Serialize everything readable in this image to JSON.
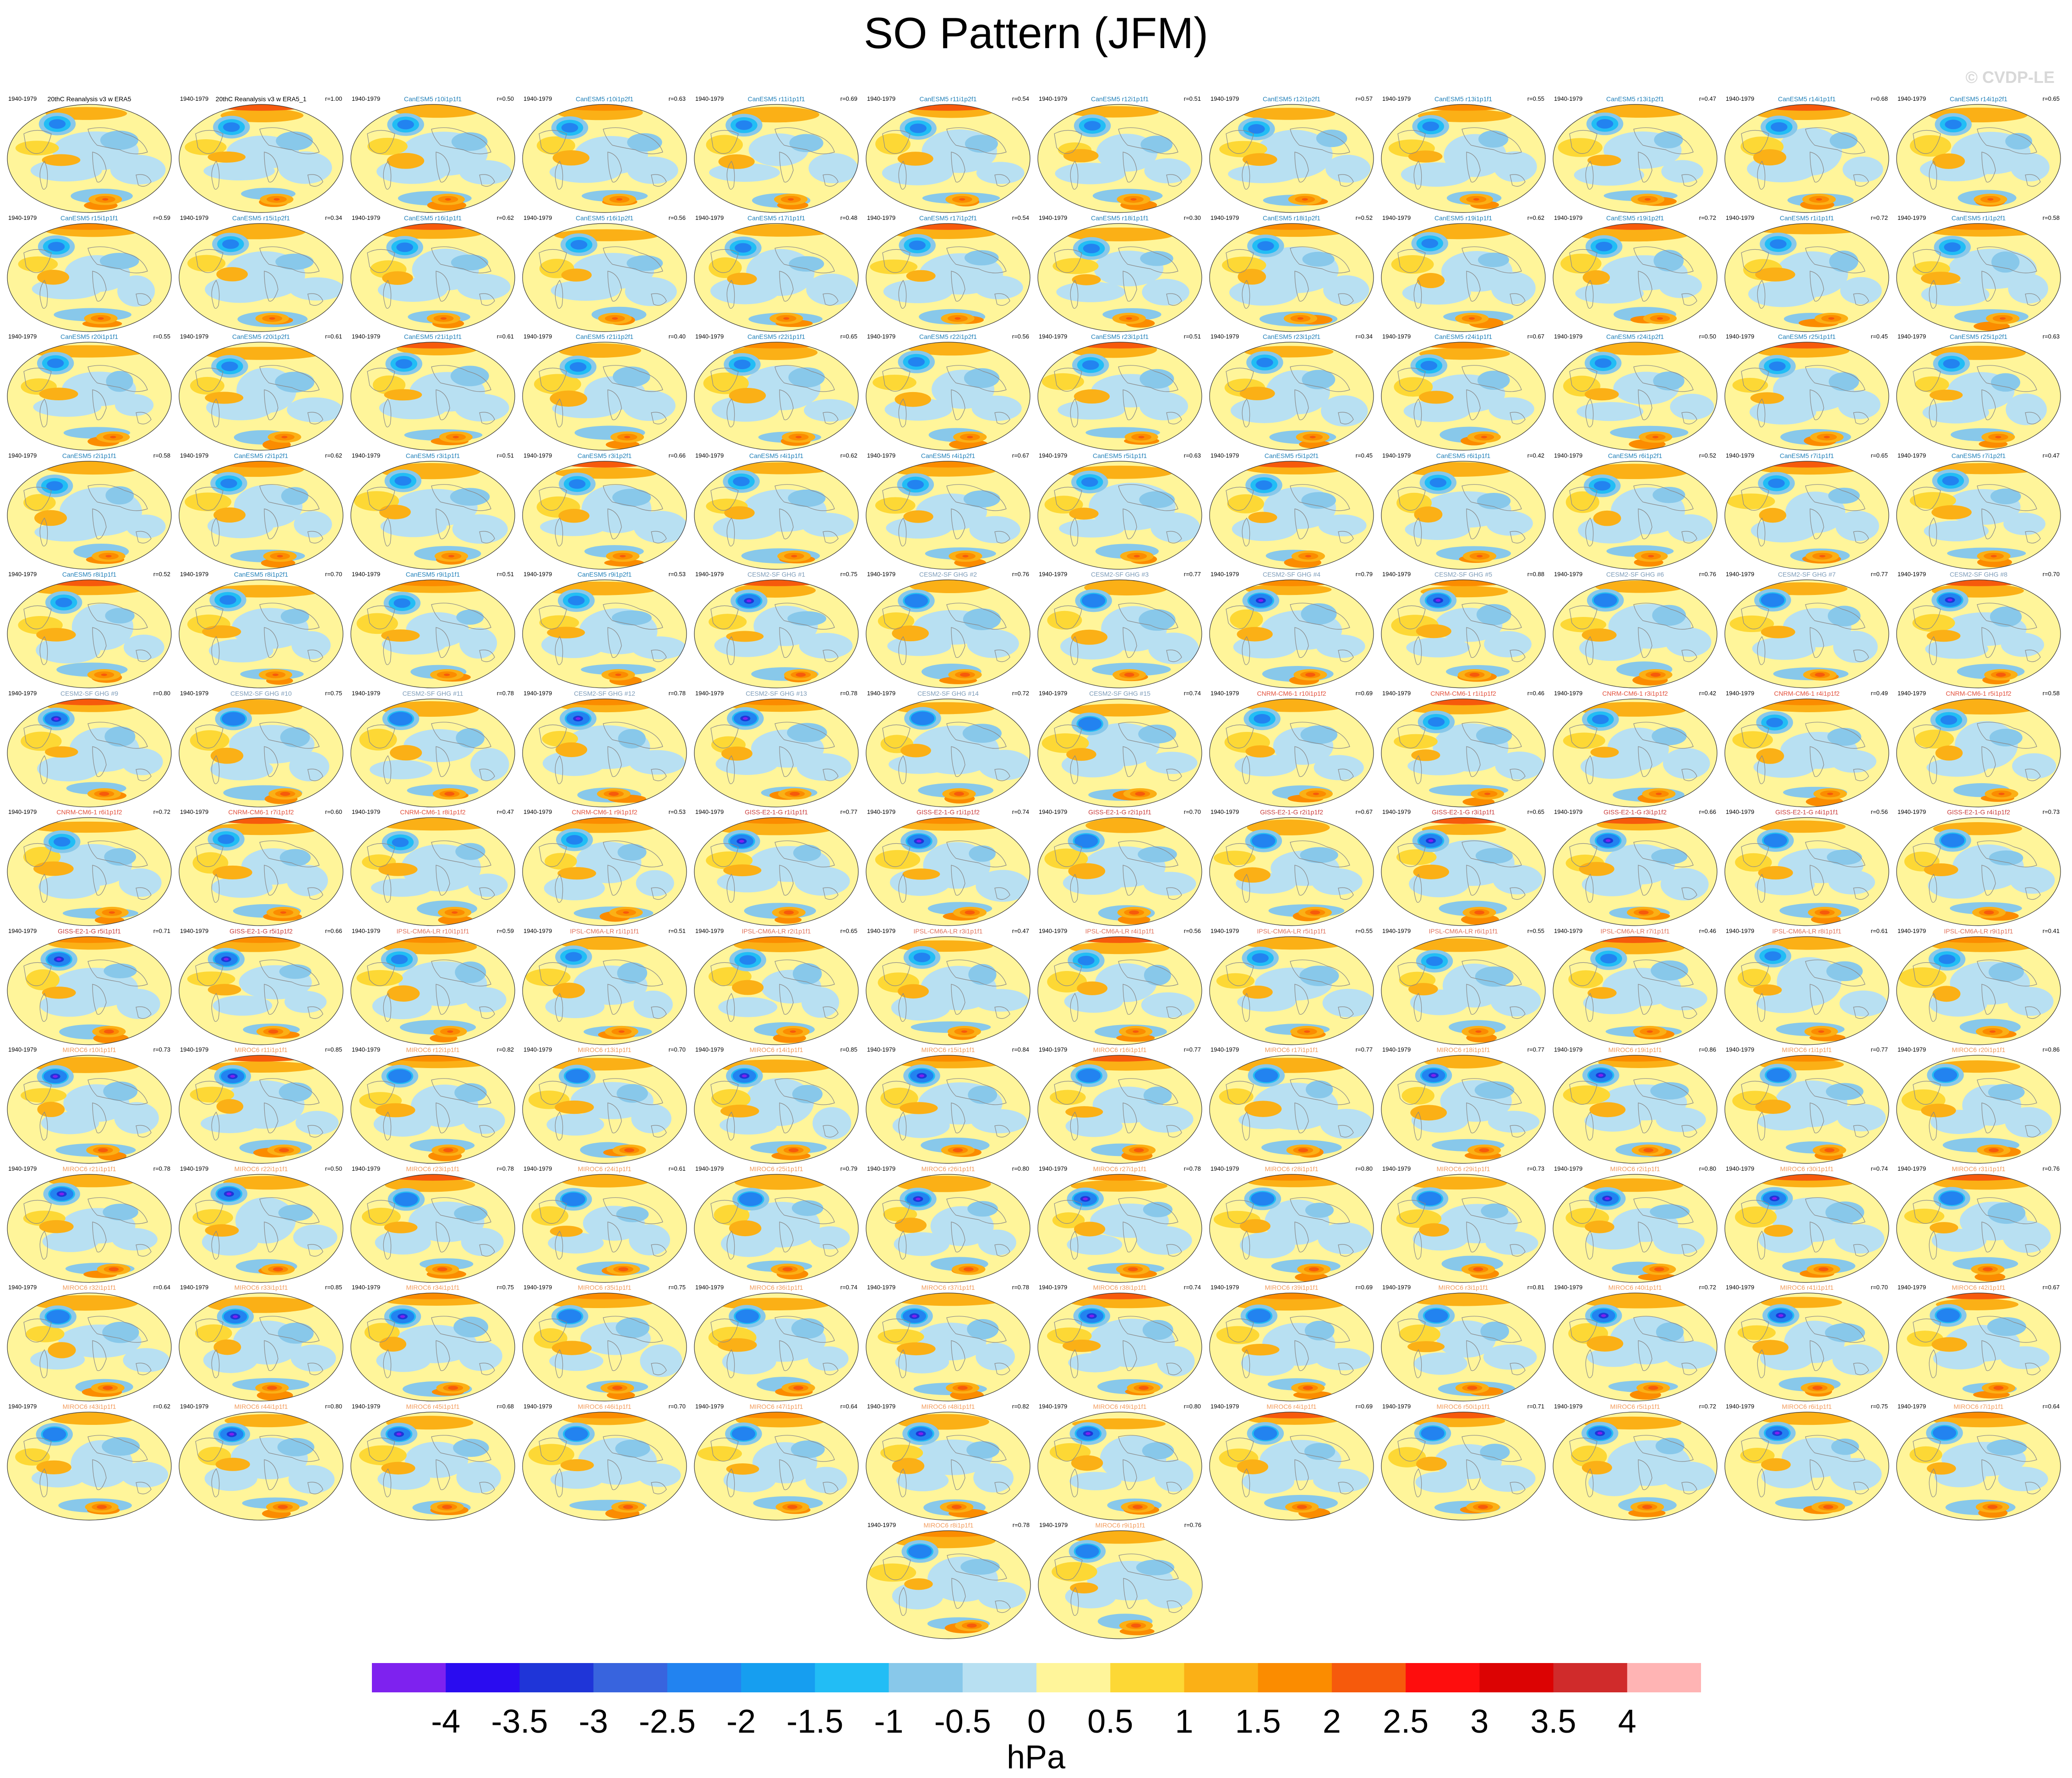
{
  "title": "SO Pattern (JFM)",
  "credit": "© CVDP-LE",
  "units": "hPa",
  "period": "1940-1979",
  "colorbar": {
    "labels": [
      "-4",
      "-3.5",
      "-3",
      "-2.5",
      "-2",
      "-1.5",
      "-1",
      "-0.5",
      "0",
      "0.5",
      "1",
      "1.5",
      "2",
      "2.5",
      "3",
      "3.5",
      "4"
    ],
    "colors": [
      "#7e22ef",
      "#2a0cf0",
      "#1f35d8",
      "#3864de",
      "#2283f0",
      "#169ef0",
      "#22bdf5",
      "#88c8ea",
      "#b8e0f2",
      "#fff59a",
      "#fdd835",
      "#fbb016",
      "#fb8c00",
      "#f65a0c",
      "#fe0d0d",
      "#dc0303",
      "#d02b2b",
      "#ffb4b4"
    ]
  },
  "panels": [
    {
      "title": "20thC Reanalysis v3 w ERA5",
      "r": "",
      "family": "obs"
    },
    {
      "title": "20thC Reanalysis v3 w ERA5_1",
      "r": "r=1.00",
      "family": "obs"
    },
    {
      "title": "CanESM5 r10i1p1f1",
      "r": "r=0.50",
      "family": "canesm"
    },
    {
      "title": "CanESM5 r10i1p2f1",
      "r": "r=0.63",
      "family": "canesm"
    },
    {
      "title": "CanESM5 r11i1p1f1",
      "r": "r=0.69",
      "family": "canesm"
    },
    {
      "title": "CanESM5 r11i1p2f1",
      "r": "r=0.54",
      "family": "canesm"
    },
    {
      "title": "CanESM5 r12i1p1f1",
      "r": "r=0.51",
      "family": "canesm"
    },
    {
      "title": "CanESM5 r12i1p2f1",
      "r": "r=0.57",
      "family": "canesm"
    },
    {
      "title": "CanESM5 r13i1p1f1",
      "r": "r=0.55",
      "family": "canesm"
    },
    {
      "title": "CanESM5 r13i1p2f1",
      "r": "r=0.47",
      "family": "canesm"
    },
    {
      "title": "CanESM5 r14i1p1f1",
      "r": "r=0.68",
      "family": "canesm"
    },
    {
      "title": "CanESM5 r14i1p2f1",
      "r": "r=0.65",
      "family": "canesm"
    },
    {
      "title": "CanESM5 r15i1p1f1",
      "r": "r=0.59",
      "family": "canesm"
    },
    {
      "title": "CanESM5 r15i1p2f1",
      "r": "r=0.34",
      "family": "canesm"
    },
    {
      "title": "CanESM5 r16i1p1f1",
      "r": "r=0.62",
      "family": "canesm"
    },
    {
      "title": "CanESM5 r16i1p2f1",
      "r": "r=0.56",
      "family": "canesm"
    },
    {
      "title": "CanESM5 r17i1p1f1",
      "r": "r=0.48",
      "family": "canesm"
    },
    {
      "title": "CanESM5 r17i1p2f1",
      "r": "r=0.54",
      "family": "canesm"
    },
    {
      "title": "CanESM5 r18i1p1f1",
      "r": "r=0.30",
      "family": "canesm"
    },
    {
      "title": "CanESM5 r18i1p2f1",
      "r": "r=0.52",
      "family": "canesm"
    },
    {
      "title": "CanESM5 r19i1p1f1",
      "r": "r=0.62",
      "family": "canesm"
    },
    {
      "title": "CanESM5 r19i1p2f1",
      "r": "r=0.72",
      "family": "canesm"
    },
    {
      "title": "CanESM5 r1i1p1f1",
      "r": "r=0.72",
      "family": "canesm"
    },
    {
      "title": "CanESM5 r1i1p2f1",
      "r": "r=0.58",
      "family": "canesm"
    },
    {
      "title": "CanESM5 r20i1p1f1",
      "r": "r=0.55",
      "family": "canesm"
    },
    {
      "title": "CanESM5 r20i1p2f1",
      "r": "r=0.61",
      "family": "canesm"
    },
    {
      "title": "CanESM5 r21i1p1f1",
      "r": "r=0.61",
      "family": "canesm"
    },
    {
      "title": "CanESM5 r21i1p2f1",
      "r": "r=0.40",
      "family": "canesm"
    },
    {
      "title": "CanESM5 r22i1p1f1",
      "r": "r=0.65",
      "family": "canesm"
    },
    {
      "title": "CanESM5 r22i1p2f1",
      "r": "r=0.56",
      "family": "canesm"
    },
    {
      "title": "CanESM5 r23i1p1f1",
      "r": "r=0.51",
      "family": "canesm"
    },
    {
      "title": "CanESM5 r23i1p2f1",
      "r": "r=0.34",
      "family": "canesm"
    },
    {
      "title": "CanESM5 r24i1p1f1",
      "r": "r=0.67",
      "family": "canesm"
    },
    {
      "title": "CanESM5 r24i1p2f1",
      "r": "r=0.50",
      "family": "canesm"
    },
    {
      "title": "CanESM5 r25i1p1f1",
      "r": "r=0.45",
      "family": "canesm"
    },
    {
      "title": "CanESM5 r25i1p2f1",
      "r": "r=0.63",
      "family": "canesm"
    },
    {
      "title": "CanESM5 r2i1p1f1",
      "r": "r=0.58",
      "family": "canesm"
    },
    {
      "title": "CanESM5 r2i1p2f1",
      "r": "r=0.62",
      "family": "canesm"
    },
    {
      "title": "CanESM5 r3i1p1f1",
      "r": "r=0.51",
      "family": "canesm"
    },
    {
      "title": "CanESM5 r3i1p2f1",
      "r": "r=0.66",
      "family": "canesm"
    },
    {
      "title": "CanESM5 r4i1p1f1",
      "r": "r=0.62",
      "family": "canesm"
    },
    {
      "title": "CanESM5 r4i1p2f1",
      "r": "r=0.67",
      "family": "canesm"
    },
    {
      "title": "CanESM5 r5i1p1f1",
      "r": "r=0.63",
      "family": "canesm"
    },
    {
      "title": "CanESM5 r5i1p2f1",
      "r": "r=0.45",
      "family": "canesm"
    },
    {
      "title": "CanESM5 r6i1p1f1",
      "r": "r=0.42",
      "family": "canesm"
    },
    {
      "title": "CanESM5 r6i1p2f1",
      "r": "r=0.52",
      "family": "canesm"
    },
    {
      "title": "CanESM5 r7i1p1f1",
      "r": "r=0.65",
      "family": "canesm"
    },
    {
      "title": "CanESM5 r7i1p2f1",
      "r": "r=0.47",
      "family": "canesm"
    },
    {
      "title": "CanESM5 r8i1p1f1",
      "r": "r=0.52",
      "family": "canesm"
    },
    {
      "title": "CanESM5 r8i1p2f1",
      "r": "r=0.70",
      "family": "canesm"
    },
    {
      "title": "CanESM5 r9i1p1f1",
      "r": "r=0.51",
      "family": "canesm"
    },
    {
      "title": "CanESM5 r9i1p2f1",
      "r": "r=0.53",
      "family": "canesm"
    },
    {
      "title": "CESM2-SF GHG #1",
      "r": "r=0.75",
      "family": "cesm"
    },
    {
      "title": "CESM2-SF GHG #2",
      "r": "r=0.76",
      "family": "cesm"
    },
    {
      "title": "CESM2-SF GHG #3",
      "r": "r=0.77",
      "family": "cesm"
    },
    {
      "title": "CESM2-SF GHG #4",
      "r": "r=0.79",
      "family": "cesm"
    },
    {
      "title": "CESM2-SF GHG #5",
      "r": "r=0.88",
      "family": "cesm"
    },
    {
      "title": "CESM2-SF GHG #6",
      "r": "r=0.76",
      "family": "cesm"
    },
    {
      "title": "CESM2-SF GHG #7",
      "r": "r=0.77",
      "family": "cesm"
    },
    {
      "title": "CESM2-SF GHG #8",
      "r": "r=0.70",
      "family": "cesm"
    },
    {
      "title": "CESM2-SF GHG #9",
      "r": "r=0.80",
      "family": "cesm"
    },
    {
      "title": "CESM2-SF GHG #10",
      "r": "r=0.75",
      "family": "cesm"
    },
    {
      "title": "CESM2-SF GHG #11",
      "r": "r=0.78",
      "family": "cesm"
    },
    {
      "title": "CESM2-SF GHG #12",
      "r": "r=0.78",
      "family": "cesm"
    },
    {
      "title": "CESM2-SF GHG #13",
      "r": "r=0.78",
      "family": "cesm"
    },
    {
      "title": "CESM2-SF GHG #14",
      "r": "r=0.72",
      "family": "cesm"
    },
    {
      "title": "CESM2-SF GHG #15",
      "r": "r=0.74",
      "family": "cesm"
    },
    {
      "title": "CNRM-CM6-1 r10i1p1f2",
      "r": "r=0.69",
      "family": "cnrm"
    },
    {
      "title": "CNRM-CM6-1 r1i1p1f2",
      "r": "r=0.46",
      "family": "cnrm"
    },
    {
      "title": "CNRM-CM6-1 r3i1p1f2",
      "r": "r=0.42",
      "family": "cnrm"
    },
    {
      "title": "CNRM-CM6-1 r4i1p1f2",
      "r": "r=0.49",
      "family": "cnrm"
    },
    {
      "title": "CNRM-CM6-1 r5i1p1f2",
      "r": "r=0.58",
      "family": "cnrm"
    },
    {
      "title": "CNRM-CM6-1 r6i1p1f2",
      "r": "r=0.72",
      "family": "cnrm"
    },
    {
      "title": "CNRM-CM6-1 r7i1p1f2",
      "r": "r=0.60",
      "family": "cnrm"
    },
    {
      "title": "CNRM-CM6-1 r8i1p1f2",
      "r": "r=0.47",
      "family": "cnrm"
    },
    {
      "title": "CNRM-CM6-1 r9i1p1f2",
      "r": "r=0.53",
      "family": "cnrm"
    },
    {
      "title": "GISS-E2-1-G r1i1p1f1",
      "r": "r=0.77",
      "family": "giss"
    },
    {
      "title": "GISS-E2-1-G r1i1p1f2",
      "r": "r=0.74",
      "family": "giss"
    },
    {
      "title": "GISS-E2-1-G r2i1p1f1",
      "r": "r=0.70",
      "family": "giss"
    },
    {
      "title": "GISS-E2-1-G r2i1p1f2",
      "r": "r=0.67",
      "family": "giss"
    },
    {
      "title": "GISS-E2-1-G r3i1p1f1",
      "r": "r=0.65",
      "family": "giss"
    },
    {
      "title": "GISS-E2-1-G r3i1p1f2",
      "r": "r=0.66",
      "family": "giss"
    },
    {
      "title": "GISS-E2-1-G r4i1p1f1",
      "r": "r=0.56",
      "family": "giss"
    },
    {
      "title": "GISS-E2-1-G r4i1p1f2",
      "r": "r=0.73",
      "family": "giss"
    },
    {
      "title": "GISS-E2-1-G r5i1p1f1",
      "r": "r=0.71",
      "family": "giss"
    },
    {
      "title": "GISS-E2-1-G r5i1p1f2",
      "r": "r=0.66",
      "family": "giss"
    },
    {
      "title": "IPSL-CM6A-LR r10i1p1f1",
      "r": "r=0.59",
      "family": "ipsl"
    },
    {
      "title": "IPSL-CM6A-LR r1i1p1f1",
      "r": "r=0.51",
      "family": "ipsl"
    },
    {
      "title": "IPSL-CM6A-LR r2i1p1f1",
      "r": "r=0.65",
      "family": "ipsl"
    },
    {
      "title": "IPSL-CM6A-LR r3i1p1f1",
      "r": "r=0.47",
      "family": "ipsl"
    },
    {
      "title": "IPSL-CM6A-LR r4i1p1f1",
      "r": "r=0.56",
      "family": "ipsl"
    },
    {
      "title": "IPSL-CM6A-LR r5i1p1f1",
      "r": "r=0.55",
      "family": "ipsl"
    },
    {
      "title": "IPSL-CM6A-LR r6i1p1f1",
      "r": "r=0.55",
      "family": "ipsl"
    },
    {
      "title": "IPSL-CM6A-LR r7i1p1f1",
      "r": "r=0.46",
      "family": "ipsl"
    },
    {
      "title": "IPSL-CM6A-LR r8i1p1f1",
      "r": "r=0.61",
      "family": "ipsl"
    },
    {
      "title": "IPSL-CM6A-LR r9i1p1f1",
      "r": "r=0.41",
      "family": "ipsl"
    },
    {
      "title": "MIROC6 r10i1p1f1",
      "r": "r=0.73",
      "family": "miroc"
    },
    {
      "title": "MIROC6 r11i1p1f1",
      "r": "r=0.85",
      "family": "miroc"
    },
    {
      "title": "MIROC6 r12i1p1f1",
      "r": "r=0.82",
      "family": "miroc"
    },
    {
      "title": "MIROC6 r13i1p1f1",
      "r": "r=0.70",
      "family": "miroc"
    },
    {
      "title": "MIROC6 r14i1p1f1",
      "r": "r=0.85",
      "family": "miroc"
    },
    {
      "title": "MIROC6 r15i1p1f1",
      "r": "r=0.84",
      "family": "miroc"
    },
    {
      "title": "MIROC6 r16i1p1f1",
      "r": "r=0.77",
      "family": "miroc"
    },
    {
      "title": "MIROC6 r17i1p1f1",
      "r": "r=0.77",
      "family": "miroc"
    },
    {
      "title": "MIROC6 r18i1p1f1",
      "r": "r=0.77",
      "family": "miroc"
    },
    {
      "title": "MIROC6 r19i1p1f1",
      "r": "r=0.86",
      "family": "miroc"
    },
    {
      "title": "MIROC6 r1i1p1f1",
      "r": "r=0.77",
      "family": "miroc"
    },
    {
      "title": "MIROC6 r20i1p1f1",
      "r": "r=0.86",
      "family": "miroc"
    },
    {
      "title": "MIROC6 r21i1p1f1",
      "r": "r=0.78",
      "family": "miroc"
    },
    {
      "title": "MIROC6 r22i1p1f1",
      "r": "r=0.50",
      "family": "miroc"
    },
    {
      "title": "MIROC6 r23i1p1f1",
      "r": "r=0.78",
      "family": "miroc"
    },
    {
      "title": "MIROC6 r24i1p1f1",
      "r": "r=0.61",
      "family": "miroc"
    },
    {
      "title": "MIROC6 r25i1p1f1",
      "r": "r=0.79",
      "family": "miroc"
    },
    {
      "title": "MIROC6 r26i1p1f1",
      "r": "r=0.80",
      "family": "miroc"
    },
    {
      "title": "MIROC6 r27i1p1f1",
      "r": "r=0.78",
      "family": "miroc"
    },
    {
      "title": "MIROC6 r28i1p1f1",
      "r": "r=0.80",
      "family": "miroc"
    },
    {
      "title": "MIROC6 r29i1p1f1",
      "r": "r=0.73",
      "family": "miroc"
    },
    {
      "title": "MIROC6 r2i1p1f1",
      "r": "r=0.80",
      "family": "miroc"
    },
    {
      "title": "MIROC6 r30i1p1f1",
      "r": "r=0.74",
      "family": "miroc"
    },
    {
      "title": "MIROC6 r31i1p1f1",
      "r": "r=0.76",
      "family": "miroc"
    },
    {
      "title": "MIROC6 r32i1p1f1",
      "r": "r=0.64",
      "family": "miroc"
    },
    {
      "title": "MIROC6 r33i1p1f1",
      "r": "r=0.85",
      "family": "miroc"
    },
    {
      "title": "MIROC6 r34i1p1f1",
      "r": "r=0.75",
      "family": "miroc"
    },
    {
      "title": "MIROC6 r35i1p1f1",
      "r": "r=0.75",
      "family": "miroc"
    },
    {
      "title": "MIROC6 r36i1p1f1",
      "r": "r=0.74",
      "family": "miroc"
    },
    {
      "title": "MIROC6 r37i1p1f1",
      "r": "r=0.78",
      "family": "miroc"
    },
    {
      "title": "MIROC6 r38i1p1f1",
      "r": "r=0.74",
      "family": "miroc"
    },
    {
      "title": "MIROC6 r39i1p1f1",
      "r": "r=0.69",
      "family": "miroc"
    },
    {
      "title": "MIROC6 r3i1p1f1",
      "r": "r=0.81",
      "family": "miroc"
    },
    {
      "title": "MIROC6 r40i1p1f1",
      "r": "r=0.72",
      "family": "miroc"
    },
    {
      "title": "MIROC6 r41i1p1f1",
      "r": "r=0.70",
      "family": "miroc"
    },
    {
      "title": "MIROC6 r42i1p1f1",
      "r": "r=0.67",
      "family": "miroc"
    },
    {
      "title": "MIROC6 r43i1p1f1",
      "r": "r=0.62",
      "family": "miroc"
    },
    {
      "title": "MIROC6 r44i1p1f1",
      "r": "r=0.80",
      "family": "miroc"
    },
    {
      "title": "MIROC6 r45i1p1f1",
      "r": "r=0.68",
      "family": "miroc"
    },
    {
      "title": "MIROC6 r46i1p1f1",
      "r": "r=0.70",
      "family": "miroc"
    },
    {
      "title": "MIROC6 r47i1p1f1",
      "r": "r=0.64",
      "family": "miroc"
    },
    {
      "title": "MIROC6 r48i1p1f1",
      "r": "r=0.82",
      "family": "miroc"
    },
    {
      "title": "MIROC6 r49i1p1f1",
      "r": "r=0.80",
      "family": "miroc"
    },
    {
      "title": "MIROC6 r4i1p1f1",
      "r": "r=0.69",
      "family": "miroc"
    },
    {
      "title": "MIROC6 r50i1p1f1",
      "r": "r=0.71",
      "family": "miroc"
    },
    {
      "title": "MIROC6 r5i1p1f1",
      "r": "r=0.72",
      "family": "miroc"
    },
    {
      "title": "MIROC6 r6i1p1f1",
      "r": "r=0.75",
      "family": "miroc"
    },
    {
      "title": "MIROC6 r7i1p1f1",
      "r": "r=0.64",
      "family": "miroc"
    },
    {
      "title": "MIROC6 r8i1p1f1",
      "r": "r=0.78",
      "family": "miroc"
    },
    {
      "title": "MIROC6 r9i1p1f1",
      "r": "r=0.76",
      "family": "miroc"
    }
  ],
  "family_colors": {
    "obs": "#000000",
    "canesm": "#1f7fb8",
    "cesm": "#7c9bb8",
    "cnrm": "#e2503c",
    "giss": "#c83a3a",
    "ipsl": "#e0705a",
    "miroc": "#f29a5a"
  }
}
